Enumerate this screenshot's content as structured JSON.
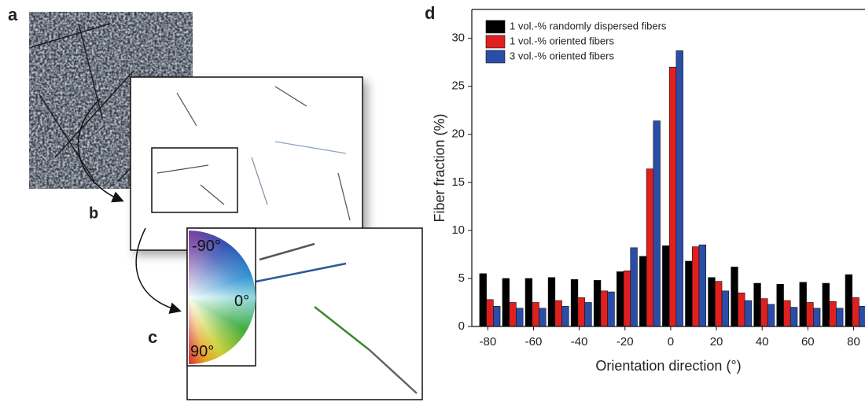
{
  "panel_labels": [
    "a",
    "b",
    "c",
    "d"
  ],
  "color_wheel_labels": [
    "-90°",
    "0°",
    "90°"
  ],
  "chart_data": {
    "type": "bar",
    "x": [
      -80,
      -70,
      -60,
      -50,
      -40,
      -30,
      -20,
      -10,
      0,
      10,
      20,
      30,
      40,
      50,
      60,
      70,
      80
    ],
    "series": [
      {
        "name": "1 vol.-% randomly dispersed fibers",
        "color": "#000000",
        "values": [
          5.5,
          5.0,
          5.0,
          5.1,
          4.9,
          4.8,
          5.7,
          7.3,
          8.4,
          6.8,
          5.1,
          6.2,
          4.5,
          4.4,
          4.6,
          4.5,
          5.4
        ]
      },
      {
        "name": "1 vol.-% oriented fibers",
        "color": "#e0201f",
        "values": [
          2.8,
          2.5,
          2.5,
          2.7,
          3.0,
          3.7,
          5.8,
          16.4,
          27.0,
          8.3,
          4.7,
          3.5,
          2.9,
          2.7,
          2.5,
          2.6,
          3.0
        ]
      },
      {
        "name": "3 vol.-% oriented fibers",
        "color": "#2a4ea8",
        "values": [
          2.1,
          1.9,
          1.9,
          2.1,
          2.5,
          3.6,
          8.2,
          21.4,
          28.7,
          8.5,
          3.7,
          2.7,
          2.3,
          2.0,
          1.9,
          1.9,
          2.1
        ]
      }
    ],
    "xlabel": "Orientation direction (°)",
    "ylabel": "Fiber fraction (%)",
    "xlim": [
      -87,
      85
    ],
    "ylim": [
      0,
      33
    ],
    "xticks": [
      -80,
      -60,
      -40,
      -20,
      0,
      20,
      40,
      60,
      80
    ],
    "yticks": [
      0,
      5,
      10,
      15,
      20,
      25,
      30
    ],
    "legend": "upper left"
  }
}
